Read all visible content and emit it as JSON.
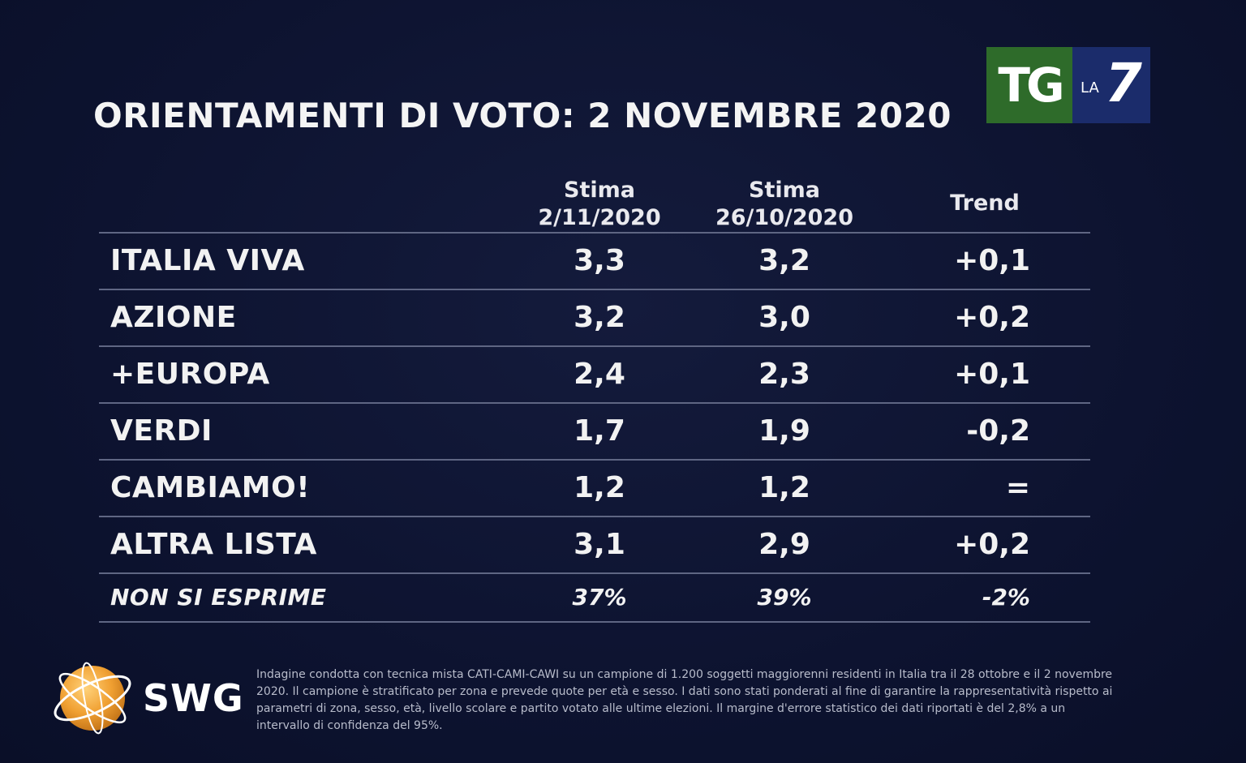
{
  "header": {
    "title": "ORIENTAMENTI DI VOTO: 2 NOVEMBRE 2020",
    "logo": {
      "tg": "TG",
      "la": "LA",
      "num": "7"
    }
  },
  "colors": {
    "background": "#0e1430",
    "tg_green": "#2e6b2a",
    "la7_blue": "#1b2c6b",
    "divider": "#5f6683"
  },
  "chart_data": {
    "type": "table",
    "title": "ORIENTAMENTI DI VOTO: 2 NOVEMBRE 2020",
    "columns": [
      {
        "line1": "Stima",
        "line2": "2/11/2020"
      },
      {
        "line1": "Stima",
        "line2": "26/10/2020"
      },
      {
        "line1": "Trend",
        "line2": ""
      }
    ],
    "rows": [
      {
        "party": "ITALIA VIVA",
        "stima_2_11": "3,3",
        "stima_26_10": "3,2",
        "trend": "+0,1"
      },
      {
        "party": "AZIONE",
        "stima_2_11": "3,2",
        "stima_26_10": "3,0",
        "trend": "+0,2"
      },
      {
        "party": "+EUROPA",
        "stima_2_11": "2,4",
        "stima_26_10": "2,3",
        "trend": "+0,1"
      },
      {
        "party": "VERDI",
        "stima_2_11": "1,7",
        "stima_26_10": "1,9",
        "trend": "-0,2"
      },
      {
        "party": "CAMBIAMO!",
        "stima_2_11": "1,2",
        "stima_26_10": "1,2",
        "trend": "="
      },
      {
        "party": "ALTRA LISTA",
        "stima_2_11": "3,1",
        "stima_26_10": "2,9",
        "trend": "+0,2"
      },
      {
        "party": "NON SI ESPRIME",
        "stima_2_11": "37%",
        "stima_26_10": "39%",
        "trend": "-2%"
      }
    ]
  },
  "footer": {
    "brand": "SWG",
    "note": "Indagine condotta con tecnica mista CATI-CAMI-CAWI su un campione di 1.200 soggetti maggiorenni residenti in Italia tra il 28 ottobre e il 2 novembre 2020. Il campione è stratificato per zona e prevede quote per età e sesso. I dati sono stati ponderati al fine di garantire la rappresentatività rispetto ai parametri di zona, sesso, età, livello scolare e partito votato alle ultime elezioni. Il margine d'errore statistico dei dati riportati è del 2,8% a un intervallo di confidenza del 95%."
  }
}
